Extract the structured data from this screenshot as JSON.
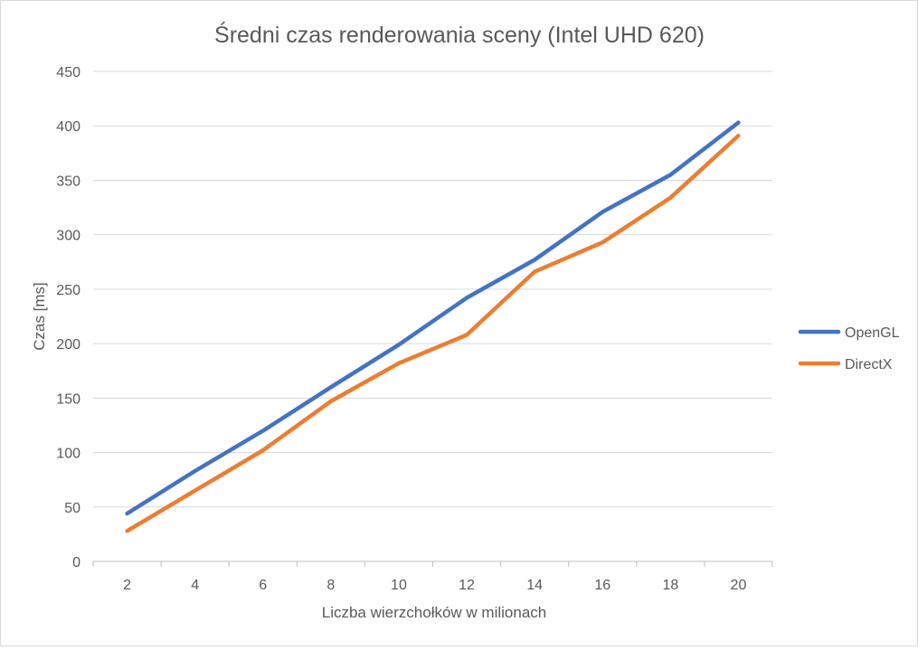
{
  "chart_data": {
    "type": "line",
    "title": "Średni czas renderowania sceny (Intel UHD 620)",
    "xlabel": "Liczba wierzchołków w milionach",
    "ylabel": "Czas  [ms]",
    "categories": [
      "2",
      "4",
      "6",
      "8",
      "10",
      "12",
      "14",
      "16",
      "18",
      "20"
    ],
    "ylim": [
      0,
      450
    ],
    "yticks": [
      0,
      50,
      100,
      150,
      200,
      250,
      300,
      350,
      400,
      450
    ],
    "grid": true,
    "legend_position": "right",
    "series": [
      {
        "name": "OpenGL",
        "color": "#4472c4",
        "values": [
          44,
          83,
          120,
          160,
          199,
          242,
          277,
          321,
          355,
          403
        ]
      },
      {
        "name": "DirectX",
        "color": "#ed7d31",
        "values": [
          28,
          65,
          102,
          147,
          182,
          208,
          266,
          293,
          334,
          391
        ]
      }
    ]
  }
}
